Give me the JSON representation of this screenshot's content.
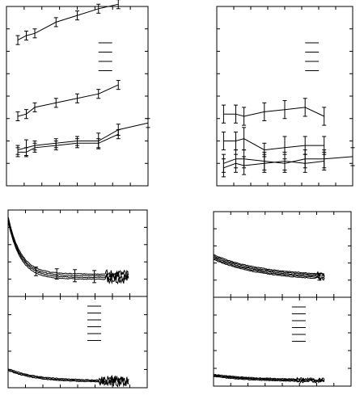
{
  "chart_data": [
    {
      "type": "line",
      "panel": "top-left",
      "title": "",
      "xlabel": "",
      "ylabel": "",
      "xlim": [
        0,
        10
      ],
      "ylim": [
        0,
        8
      ],
      "legend": "top-right",
      "legend_entries": 4,
      "series": [
        {
          "x": [
            0.8,
            1.4,
            2.0,
            3.5,
            5.0,
            6.5,
            7.9
          ],
          "y": [
            6.5,
            6.7,
            6.8,
            7.3,
            7.6,
            7.9,
            8.1
          ],
          "err": [
            0.2,
            0.2,
            0.2,
            0.2,
            0.2,
            0.2,
            0.2
          ]
        },
        {
          "x": [
            0.8,
            1.4,
            2.0,
            3.5,
            5.0,
            6.5,
            7.9
          ],
          "y": [
            3.1,
            3.2,
            3.5,
            3.7,
            3.9,
            4.1,
            4.5
          ],
          "err": [
            0.2,
            0.2,
            0.2,
            0.2,
            0.2,
            0.2,
            0.2
          ]
        },
        {
          "x": [
            0.8,
            1.4,
            2.0,
            3.5,
            5.0,
            6.5,
            7.9,
            10.0
          ],
          "y": [
            1.6,
            1.7,
            1.8,
            1.9,
            2.0,
            2.0,
            2.5,
            2.8
          ],
          "err": [
            0.2,
            0.35,
            0.2,
            0.2,
            0.2,
            0.35,
            0.25,
            0.2
          ]
        },
        {
          "x": [
            0.8,
            1.4,
            2.0,
            3.5,
            5.0,
            6.5,
            7.9
          ],
          "y": [
            1.5,
            1.5,
            1.7,
            1.8,
            1.9,
            1.9,
            2.3
          ],
          "err": [
            0.2,
            0.2,
            0.2,
            0.2,
            0.2,
            0.2,
            0.2
          ]
        }
      ]
    },
    {
      "type": "line",
      "panel": "top-right",
      "title": "",
      "xlabel": "",
      "ylabel": "",
      "xlim": [
        0,
        10
      ],
      "ylim": [
        0,
        8
      ],
      "legend": "top-right",
      "legend_entries": 4,
      "series": [
        {
          "x": [
            0.5,
            1.4,
            2.0,
            3.5,
            5.0,
            6.5,
            7.9
          ],
          "y": [
            3.2,
            3.2,
            3.1,
            3.3,
            3.4,
            3.5,
            3.1
          ],
          "err": [
            0.4,
            0.4,
            0.4,
            0.4,
            0.4,
            0.4,
            0.4
          ]
        },
        {
          "x": [
            0.5,
            1.4,
            2.0,
            3.5,
            5.0,
            6.5,
            7.9
          ],
          "y": [
            2.0,
            2.0,
            2.1,
            1.6,
            1.7,
            1.8,
            1.8
          ],
          "err": [
            0.4,
            0.4,
            0.5,
            0.3,
            0.5,
            0.4,
            0.4
          ]
        },
        {
          "x": [
            0.5,
            1.4,
            2.0,
            3.5,
            5.0,
            6.5,
            7.9,
            10.0
          ],
          "y": [
            1.0,
            1.2,
            1.2,
            1.1,
            1.0,
            1.2,
            1.2,
            1.3
          ],
          "err": [
            0.4,
            0.4,
            0.4,
            0.4,
            0.4,
            0.4,
            0.4,
            0.4
          ]
        },
        {
          "x": [
            0.5,
            1.4,
            2.0,
            3.5,
            5.0,
            6.5,
            7.9
          ],
          "y": [
            0.8,
            1.0,
            0.9,
            1.0,
            1.1,
            1.0,
            1.1
          ],
          "err": [
            0.4,
            0.4,
            0.4,
            0.4,
            0.4,
            0.4,
            0.4
          ]
        }
      ]
    },
    {
      "type": "line",
      "panel": "bottom-left-upper",
      "title": "",
      "xlabel": "",
      "ylabel": "",
      "xlim": [
        0,
        10
      ],
      "ylim": [
        0,
        5
      ],
      "n_series": 4,
      "decay": {
        "start": 4.5,
        "floor": 1.15,
        "tau": 0.9,
        "x_end": 8.7,
        "spread": 0.1,
        "noise_from": 7.0,
        "noise_amp": 0.25
      },
      "error_bars": {
        "x": [
          2.0,
          3.5,
          4.8,
          6.2
        ],
        "y": [
          1.45,
          1.3,
          1.2,
          1.15
        ],
        "err": [
          0.25,
          0.3,
          0.35,
          0.35
        ]
      }
    },
    {
      "type": "line",
      "panel": "bottom-left-lower",
      "title": "",
      "xlabel": "",
      "ylabel": "",
      "xlim": [
        0,
        10
      ],
      "ylim": [
        0,
        5
      ],
      "legend": "top-center",
      "legend_entries": 6,
      "n_series": 3,
      "decay": {
        "start": 1.0,
        "floor": 0.35,
        "tau": 2.0,
        "x_end": 8.7,
        "spread": 0.05,
        "noise_from": 6.5,
        "noise_amp": 0.25
      }
    },
    {
      "type": "line",
      "panel": "bottom-right-upper",
      "title": "",
      "xlabel": "",
      "ylabel": "",
      "xlim": [
        0,
        10
      ],
      "ylim": [
        0,
        5
      ],
      "n_series": 5,
      "decay": {
        "start": 2.35,
        "floor": 1.1,
        "tau": 3.5,
        "x_end": 8.1,
        "spread": 0.07,
        "noise_from": 7.5,
        "noise_amp": 0.1
      },
      "error_bars": {
        "x": [
          7.7
        ],
        "y": [
          1.2
        ],
        "err": [
          0.2
        ]
      }
    },
    {
      "type": "line",
      "panel": "bottom-right-lower",
      "title": "",
      "xlabel": "",
      "ylabel": "",
      "xlim": [
        0,
        10
      ],
      "ylim": [
        0,
        5
      ],
      "legend": "top-center",
      "legend_entries": 6,
      "n_series": 4,
      "decay": {
        "start": 0.6,
        "floor": 0.3,
        "tau": 3.0,
        "x_end": 8.1,
        "spread": 0.04,
        "noise_from": 6.0,
        "noise_amp": 0.08
      }
    }
  ]
}
